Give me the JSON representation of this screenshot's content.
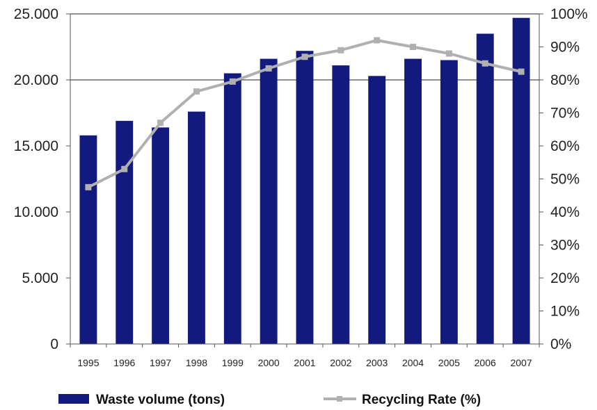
{
  "chart_data": {
    "type": "bar",
    "title": "",
    "xlabel": "",
    "ylabel": "",
    "categories": [
      "1995",
      "1996",
      "1997",
      "1998",
      "1999",
      "2000",
      "2001",
      "2002",
      "2003",
      "2004",
      "2005",
      "2006",
      "2007"
    ],
    "series": [
      {
        "name": "Waste volume (tons)",
        "type": "bar",
        "axis": "left",
        "color": "#131a7d",
        "values": [
          15800,
          16900,
          16400,
          17600,
          20500,
          21600,
          22200,
          21100,
          20300,
          21600,
          21500,
          23500,
          24700
        ]
      },
      {
        "name": "Recycling Rate (%)",
        "type": "line",
        "axis": "right",
        "color": "#b0b0b0",
        "values": [
          47.5,
          53,
          67,
          76.5,
          79.5,
          83.5,
          87,
          89,
          92,
          90,
          88,
          85,
          82.5
        ]
      }
    ],
    "y_left": {
      "ylim": [
        0,
        25000
      ],
      "ticks": [
        0,
        5000,
        10000,
        15000,
        20000,
        25000
      ],
      "tick_labels": [
        "0",
        "5.000",
        "10.000",
        "15.000",
        "20.000",
        "25.000"
      ]
    },
    "y_right": {
      "ylim": [
        0,
        100
      ],
      "ticks": [
        0,
        10,
        20,
        30,
        40,
        50,
        60,
        70,
        80,
        90,
        100
      ],
      "tick_labels": [
        "0%",
        "10%",
        "20%",
        "30%",
        "40%",
        "50%",
        "60%",
        "70%",
        "80%",
        "90%",
        "100%"
      ]
    },
    "gridlines": [
      20000,
      25000
    ],
    "legend_placement": "bottom"
  }
}
